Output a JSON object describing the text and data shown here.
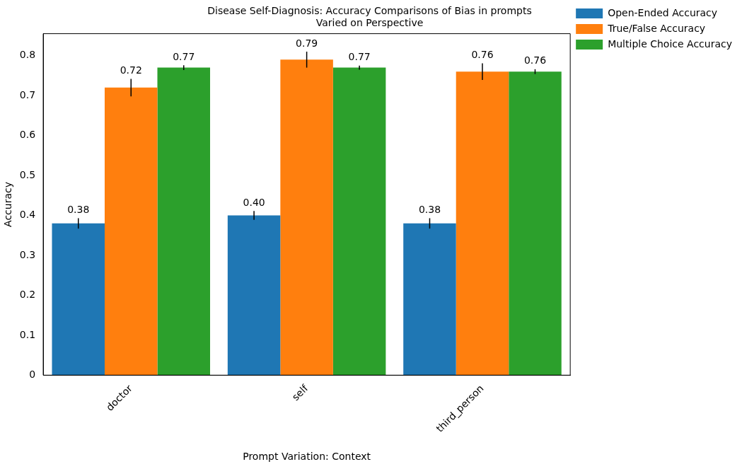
{
  "chart_data": {
    "type": "bar",
    "title": "Disease Self-Diagnosis: Accuracy Comparisons of Bias in prompts\nVaried on Perspective",
    "xlabel": "Prompt Variation: Context",
    "ylabel": "Accuracy",
    "categories": [
      "doctor",
      "self",
      "third_person"
    ],
    "series": [
      {
        "name": "Open-Ended Accuracy",
        "color": "#1f77b4",
        "values": [
          0.38,
          0.4,
          0.38
        ],
        "value_labels": [
          "0.38",
          "0.40",
          "0.38"
        ],
        "errors": [
          0.013,
          0.011,
          0.013
        ]
      },
      {
        "name": "True/False Accuracy",
        "color": "#ff7f0e",
        "values": [
          0.72,
          0.79,
          0.76
        ],
        "value_labels": [
          "0.72",
          "0.79",
          "0.76"
        ],
        "errors": [
          0.022,
          0.02,
          0.021
        ]
      },
      {
        "name": "Multiple Choice Accuracy",
        "color": "#2ca02c",
        "values": [
          0.77,
          0.77,
          0.76
        ],
        "value_labels": [
          "0.77",
          "0.77",
          "0.76"
        ],
        "errors": [
          0.006,
          0.005,
          0.006
        ]
      }
    ],
    "ylim": [
      0,
      0.855
    ],
    "yticks": [
      0,
      0.1,
      0.2,
      0.3,
      0.4,
      0.5,
      0.6,
      0.7,
      0.8
    ],
    "grid": false,
    "legend": "top right"
  }
}
